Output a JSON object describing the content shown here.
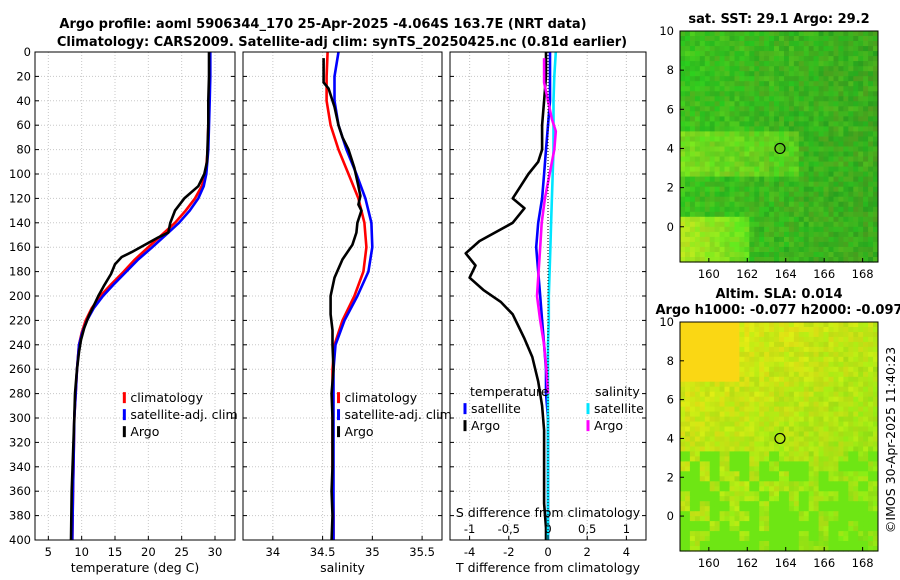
{
  "figure": {
    "title_line1": "Argo profile: aoml 5906344_170 25-Apr-2025 -4.064S 163.7E (NRT data)",
    "title_line2": "Climatology: CARS2009. Satellite-adj clim: synTS_20250425.nc (0.81d earlier)",
    "watermark": "©IMOS 30-Apr-2025 11:40:23"
  },
  "colors": {
    "climatology": "#ff0000",
    "satellite": "#0000ff",
    "argo": "#000000",
    "sal_satellite": "#00e5ff",
    "sal_argo": "#ff00ff"
  },
  "chart_data": [
    {
      "type": "line",
      "id": "temperature",
      "xlabel": "temperature (deg C)",
      "ylabel": "",
      "xlim": [
        3,
        33
      ],
      "ylim": [
        400,
        0
      ],
      "xticks": [
        5,
        10,
        15,
        20,
        25,
        30
      ],
      "xticklabels": [
        "5",
        "10",
        "15",
        "20",
        "25",
        "30"
      ],
      "yticks": [
        0,
        20,
        40,
        60,
        80,
        100,
        120,
        140,
        160,
        180,
        200,
        220,
        240,
        260,
        280,
        300,
        320,
        340,
        360,
        380,
        400
      ],
      "yticklabels": [
        "0",
        "20",
        "40",
        "60",
        "80",
        "100",
        "120",
        "140",
        "160",
        "180",
        "200",
        "220",
        "240",
        "260",
        "280",
        "300",
        "320",
        "340",
        "360",
        "380",
        "400"
      ],
      "legend": [
        "climatology",
        "satellite-adj. clim",
        "Argo"
      ],
      "series": [
        {
          "name": "climatology",
          "color": "#ff0000",
          "x": [
            29.2,
            29.2,
            29.1,
            29.0,
            28.9,
            28.6,
            28.0,
            27.0,
            25.6,
            24.0,
            22.0,
            20.0,
            18.0,
            16.3,
            14.5,
            12.8,
            11.5,
            10.6,
            10.0,
            9.6,
            9.3,
            9.1,
            8.9,
            8.8,
            8.7,
            8.6
          ],
          "y": [
            0,
            20,
            40,
            60,
            80,
            100,
            110,
            120,
            130,
            140,
            150,
            160,
            170,
            180,
            190,
            200,
            210,
            220,
            230,
            240,
            260,
            280,
            300,
            330,
            360,
            400
          ]
        },
        {
          "name": "satellite-adj. clim",
          "color": "#0000ff",
          "x": [
            29.3,
            29.3,
            29.2,
            29.1,
            29.0,
            28.7,
            28.3,
            27.5,
            26.2,
            24.6,
            22.6,
            20.6,
            18.5,
            16.7,
            14.9,
            13.2,
            11.8,
            10.8,
            10.1,
            9.6,
            9.3,
            9.1,
            8.9,
            8.8,
            8.7,
            8.6
          ],
          "y": [
            0,
            20,
            40,
            60,
            80,
            100,
            110,
            120,
            130,
            140,
            150,
            160,
            170,
            180,
            190,
            200,
            210,
            220,
            230,
            240,
            260,
            280,
            300,
            330,
            360,
            400
          ]
        },
        {
          "name": "Argo",
          "color": "#000000",
          "x": [
            29.1,
            29.1,
            29.0,
            29.0,
            28.8,
            28.4,
            27.5,
            25.4,
            24.0,
            23.3,
            23.0,
            21.5,
            19.5,
            17.5,
            16.0,
            15.0,
            14.4,
            13.3,
            12.5,
            11.8,
            11.1,
            10.4,
            9.9,
            9.6,
            9.3,
            9.0,
            8.9,
            8.7,
            8.5,
            8.4
          ],
          "y": [
            0,
            20,
            40,
            60,
            90,
            100,
            110,
            120,
            130,
            140,
            148,
            152,
            158,
            164,
            168,
            174,
            182,
            192,
            200,
            208,
            216,
            226,
            236,
            246,
            260,
            280,
            300,
            330,
            360,
            400
          ]
        }
      ]
    },
    {
      "type": "line",
      "id": "salinity",
      "xlabel": "salinity",
      "ylabel": "",
      "xlim": [
        33.7,
        35.7
      ],
      "ylim": [
        400,
        0
      ],
      "xticks": [
        34,
        34.5,
        35,
        35.5
      ],
      "xticklabels": [
        "34",
        "34.5",
        "35",
        "35.5"
      ],
      "legend": [
        "climatology",
        "satellite-adj. clim",
        "Argo"
      ],
      "series": [
        {
          "name": "climatology",
          "color": "#ff0000",
          "x": [
            34.55,
            34.54,
            34.54,
            34.58,
            34.66,
            34.76,
            34.86,
            34.92,
            34.94,
            34.91,
            34.82,
            34.7,
            34.62,
            34.6,
            34.6,
            34.6,
            34.61,
            34.61
          ],
          "y": [
            0,
            20,
            40,
            60,
            80,
            100,
            120,
            140,
            160,
            180,
            200,
            220,
            240,
            260,
            300,
            340,
            380,
            400
          ]
        },
        {
          "name": "satellite-adj. clim",
          "color": "#0000ff",
          "x": [
            34.66,
            34.62,
            34.62,
            34.66,
            34.74,
            34.84,
            34.93,
            34.99,
            35.0,
            34.96,
            34.85,
            34.72,
            34.63,
            34.61,
            34.61,
            34.61,
            34.61,
            34.61
          ],
          "y": [
            0,
            20,
            40,
            60,
            80,
            100,
            120,
            140,
            160,
            180,
            200,
            220,
            240,
            260,
            300,
            340,
            380,
            400
          ]
        },
        {
          "name": "Argo",
          "color": "#000000",
          "x": [
            34.51,
            34.51,
            34.56,
            34.62,
            34.66,
            34.7,
            34.76,
            34.82,
            34.86,
            34.88,
            34.86,
            34.89,
            34.85,
            34.84,
            34.8,
            34.7,
            34.62,
            34.58,
            34.58,
            34.6,
            34.6,
            34.61,
            34.59,
            34.6,
            34.6,
            34.6,
            34.59,
            34.6,
            34.59
          ],
          "y": [
            5,
            25,
            30,
            45,
            60,
            70,
            80,
            95,
            110,
            118,
            125,
            130,
            140,
            148,
            158,
            170,
            185,
            200,
            215,
            228,
            240,
            260,
            280,
            300,
            320,
            340,
            360,
            380,
            400
          ]
        }
      ]
    },
    {
      "type": "line",
      "id": "difference",
      "xlabel": "T difference from climatology",
      "xlabel_top": "S difference from climatology",
      "xlim": [
        -5,
        5
      ],
      "ylim": [
        400,
        0
      ],
      "xticks": [
        -4,
        -2,
        0,
        2,
        4
      ],
      "xticklabels": [
        "-4",
        "-2",
        "0",
        "2",
        "4"
      ],
      "sticks": [
        -1,
        -0.5,
        0,
        0.5,
        1
      ],
      "sticklabels": [
        "-1",
        "-0,5",
        "0",
        "0,5",
        "1"
      ],
      "legend_temperature_title": "temperature",
      "legend_salinity_title": "salinity",
      "legend": [
        "satellite",
        "Argo",
        "satellite",
        "Argo"
      ],
      "series": [
        {
          "name": "temperature satellite",
          "color": "#0000ff",
          "axis": "T",
          "x": [
            0.1,
            0.1,
            0.1,
            0.0,
            -0.1,
            -0.2,
            -0.3,
            -0.5,
            -0.6,
            -0.5,
            -0.4,
            -0.3,
            -0.2,
            -0.1,
            -0.1,
            0.0,
            0.0,
            0.0,
            0.0,
            0.0
          ],
          "y": [
            0,
            20,
            40,
            60,
            80,
            100,
            120,
            140,
            160,
            180,
            200,
            220,
            240,
            260,
            280,
            300,
            320,
            340,
            360,
            400
          ]
        },
        {
          "name": "temperature Argo",
          "color": "#000000",
          "axis": "T",
          "x": [
            -0.1,
            -0.1,
            -0.2,
            -0.3,
            -0.3,
            -0.5,
            -1.0,
            -1.4,
            -1.8,
            -1.2,
            -1.8,
            -3.5,
            -4.2,
            -3.7,
            -4.0,
            -3.3,
            -2.4,
            -1.8,
            -1.5,
            -1.2,
            -0.8,
            -0.5,
            -0.3,
            -0.2,
            -0.2,
            -0.2,
            -0.2,
            -0.1,
            -0.1
          ],
          "y": [
            0,
            20,
            40,
            60,
            80,
            90,
            100,
            110,
            120,
            128,
            140,
            155,
            165,
            175,
            185,
            195,
            205,
            215,
            225,
            235,
            250,
            270,
            290,
            310,
            330,
            350,
            370,
            390,
            400
          ]
        },
        {
          "name": "salinity satellite",
          "color": "#00e5ff",
          "axis": "S",
          "x": [
            0.1,
            0.08,
            0.07,
            0.07,
            0.07,
            0.06,
            0.05,
            0.04,
            0.03,
            0.02,
            0.01,
            0.01,
            0.0,
            0.0,
            0.0,
            0.0,
            0.0
          ],
          "y": [
            0,
            20,
            40,
            60,
            80,
            100,
            120,
            140,
            160,
            180,
            200,
            220,
            240,
            260,
            300,
            350,
            400
          ]
        },
        {
          "name": "salinity Argo",
          "color": "#ff00ff",
          "axis": "S",
          "x": [
            -0.05,
            -0.05,
            0.0,
            0.05,
            0.1,
            0.08,
            0.02,
            -0.04,
            -0.08,
            -0.1,
            -0.12,
            -0.14,
            -0.1,
            -0.05,
            -0.02,
            0.0
          ],
          "y": [
            5,
            25,
            40,
            55,
            65,
            80,
            100,
            120,
            140,
            160,
            180,
            200,
            220,
            240,
            260,
            280
          ]
        }
      ]
    }
  ],
  "maps": [
    {
      "id": "sst",
      "title_lines": [
        "sat. SST: 29.1 Argo: 29.2"
      ],
      "xlim": [
        158.5,
        168.8
      ],
      "ylim": [
        -1.8,
        10
      ],
      "xticks": [
        160,
        162,
        164,
        166,
        168
      ],
      "xticklabels": [
        "160",
        "162",
        "164",
        "166",
        "168"
      ],
      "yticks": [
        0,
        2,
        4,
        6,
        8,
        10
      ],
      "yticklabels": [
        "0",
        "2",
        "4",
        "6",
        "8",
        "10"
      ],
      "marker": {
        "lon": 163.7,
        "lat": 4.0
      }
    },
    {
      "id": "sla",
      "title_lines": [
        "Altim. SLA: 0.014",
        "Argo h1000: -0.077 h2000: -0.097"
      ],
      "xlim": [
        158.5,
        168.8
      ],
      "ylim": [
        -1.8,
        10
      ],
      "xticks": [
        160,
        162,
        164,
        166,
        168
      ],
      "xticklabels": [
        "160",
        "162",
        "164",
        "166",
        "168"
      ],
      "yticks": [
        0,
        2,
        4,
        6,
        8,
        10
      ],
      "yticklabels": [
        "0",
        "2",
        "4",
        "6",
        "8",
        "10"
      ],
      "marker": {
        "lon": 163.7,
        "lat": 4.0
      }
    }
  ]
}
